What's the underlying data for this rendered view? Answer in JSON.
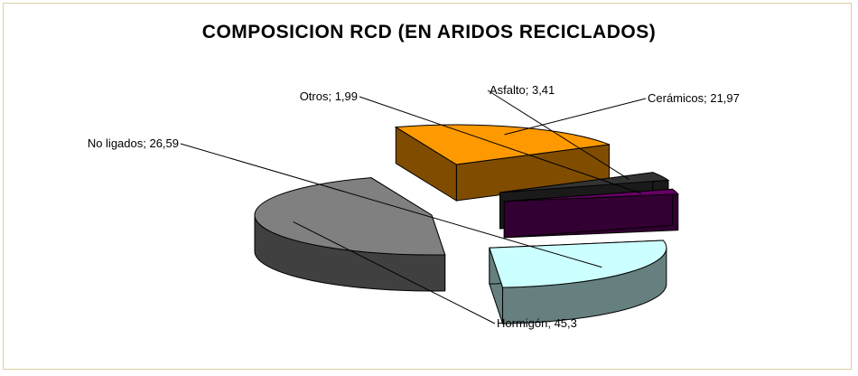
{
  "chart_data": {
    "type": "pie",
    "title": "COMPOSICION RCD (EN ARIDOS RECICLADOS)",
    "slices": [
      {
        "label": "Hormigón",
        "value": 45.3,
        "data_label": "Hormigón; 45,3",
        "color": "#808080",
        "side_color": "#404040"
      },
      {
        "label": "No ligados",
        "value": 26.59,
        "data_label": "No ligados; 26,59",
        "color": "#ccffff",
        "side_color": "#668080"
      },
      {
        "label": "Otros",
        "value": 1.99,
        "data_label": "Otros; 1,99",
        "color": "#660066",
        "side_color": "#330033"
      },
      {
        "label": "Asfalto",
        "value": 3.41,
        "data_label": "Asfalto; 3,41",
        "color": "#333333",
        "side_color": "#1a1a1a"
      },
      {
        "label": "Cerámicos",
        "value": 21.97,
        "data_label": "Cerámicos; 21,97",
        "color": "#ff9900",
        "side_color": "#804d00"
      }
    ],
    "style": "3d-exploded",
    "legend": "none"
  }
}
